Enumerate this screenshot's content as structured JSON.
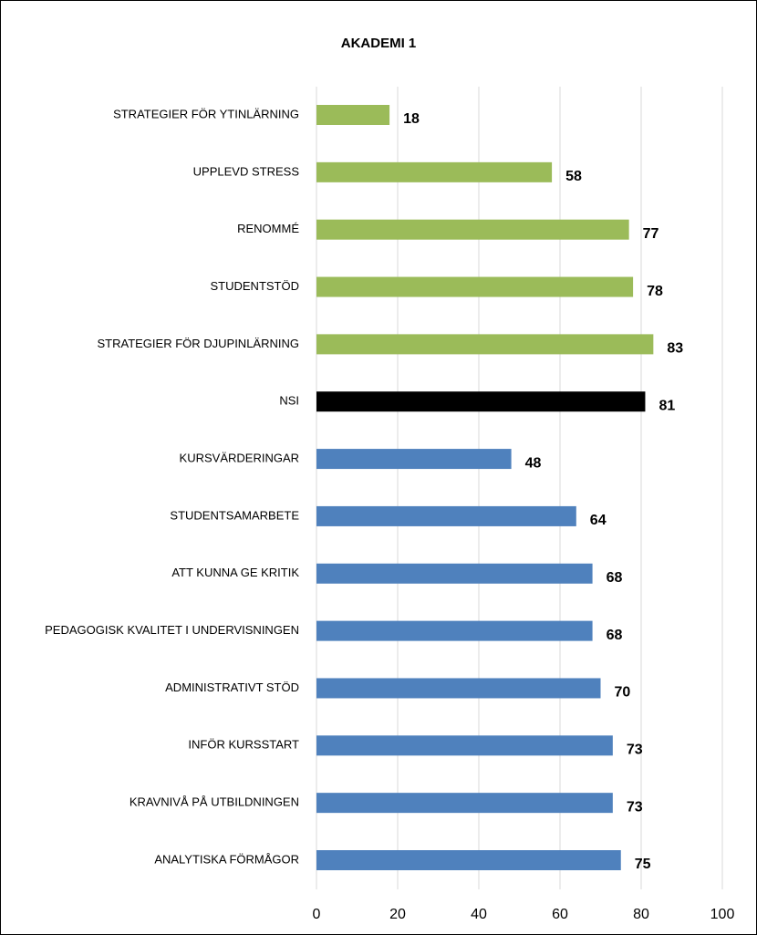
{
  "chart_data": {
    "type": "barh",
    "title": "AKADEMI 1",
    "categories": [
      "STRATEGIER FÖR YTINLÄRNING",
      "UPPLEVD STRESS",
      "RENOMMÉ",
      "STUDENTSTÖD",
      "STRATEGIER FÖR DJUPINLÄRNING",
      "NSI",
      "KURSVÄRDERINGAR",
      "STUDENTSAMARBETE",
      "ATT KUNNA GE KRITIK",
      "PEDAGOGISK KVALITET I UNDERVISNINGEN",
      "ADMINISTRATIVT STÖD",
      "INFÖR KURSSTART",
      "KRAVNIVÅ PÅ UTBILDNINGEN",
      "ANALYTISKA FÖRMÅGOR"
    ],
    "values": [
      18,
      58,
      77,
      78,
      83,
      81,
      48,
      64,
      68,
      68,
      70,
      73,
      73,
      75
    ],
    "colors": [
      "#9bbb59",
      "#9bbb59",
      "#9bbb59",
      "#9bbb59",
      "#9bbb59",
      "#000000",
      "#4f81bd",
      "#4f81bd",
      "#4f81bd",
      "#4f81bd",
      "#4f81bd",
      "#4f81bd",
      "#4f81bd",
      "#4f81bd"
    ],
    "xlim": [
      0,
      100
    ],
    "xticks": [
      0,
      20,
      40,
      60,
      80,
      100
    ],
    "grid": true
  }
}
